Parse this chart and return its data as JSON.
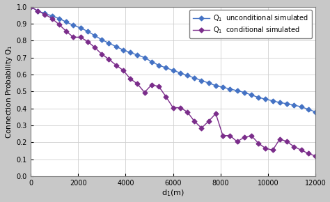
{
  "xlabel": "d$_1$(m)",
  "ylabel": "Connection Probability Q$_1$",
  "xlim": [
    0,
    12000
  ],
  "ylim": [
    0,
    1.0
  ],
  "xticks": [
    0,
    2000,
    4000,
    6000,
    8000,
    10000,
    12000
  ],
  "yticks": [
    0,
    0.1,
    0.2,
    0.3,
    0.4,
    0.5,
    0.6,
    0.7,
    0.8,
    0.9,
    1.0
  ],
  "blue_color": "#4472C4",
  "purple_color": "#7B2D8B",
  "fig_bg": "#c8c8c8",
  "plot_bg": "#ffffff",
  "grid_color": "#d0d0d0",
  "unconditional_x": [
    0,
    300,
    600,
    900,
    1200,
    1500,
    1800,
    2100,
    2400,
    2700,
    3000,
    3300,
    3600,
    3900,
    4200,
    4500,
    4800,
    5100,
    5400,
    5700,
    6000,
    6300,
    6600,
    6900,
    7200,
    7500,
    7800,
    8100,
    8400,
    8700,
    9000,
    9300,
    9600,
    9900,
    10200,
    10500,
    10800,
    11100,
    11400,
    11700,
    12000
  ],
  "unconditional_y": [
    1.0,
    0.975,
    0.96,
    0.945,
    0.93,
    0.91,
    0.89,
    0.875,
    0.855,
    0.83,
    0.805,
    0.785,
    0.765,
    0.745,
    0.73,
    0.715,
    0.7,
    0.675,
    0.655,
    0.64,
    0.625,
    0.61,
    0.595,
    0.58,
    0.565,
    0.55,
    0.535,
    0.525,
    0.515,
    0.505,
    0.495,
    0.48,
    0.465,
    0.455,
    0.445,
    0.435,
    0.428,
    0.42,
    0.41,
    0.395,
    0.38
  ],
  "conditional_x": [
    0,
    300,
    600,
    900,
    1200,
    1500,
    1800,
    2100,
    2400,
    2700,
    3000,
    3300,
    3600,
    3900,
    4200,
    4500,
    4800,
    5100,
    5400,
    5700,
    6000,
    6300,
    6600,
    6900,
    7200,
    7500,
    7800,
    8100,
    8400,
    8700,
    9000,
    9300,
    9600,
    9900,
    10200,
    10500,
    10800,
    11100,
    11400,
    11700,
    12000
  ],
  "conditional_y": [
    1.0,
    0.975,
    0.955,
    0.93,
    0.895,
    0.855,
    0.82,
    0.82,
    0.795,
    0.76,
    0.72,
    0.69,
    0.655,
    0.625,
    0.575,
    0.545,
    0.495,
    0.54,
    0.53,
    0.47,
    0.405,
    0.405,
    0.38,
    0.325,
    0.285,
    0.325,
    0.37,
    0.24,
    0.24,
    0.205,
    0.23,
    0.24,
    0.195,
    0.165,
    0.155,
    0.22,
    0.205,
    0.175,
    0.155,
    0.135,
    0.12
  ],
  "marker": "D",
  "markersize": 3.5,
  "linewidth": 1.0
}
